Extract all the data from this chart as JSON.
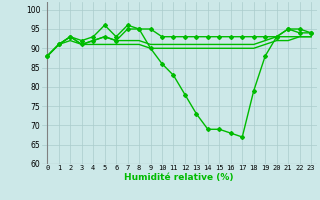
{
  "x": [
    0,
    1,
    2,
    3,
    4,
    5,
    6,
    7,
    8,
    9,
    10,
    11,
    12,
    13,
    14,
    15,
    16,
    17,
    18,
    19,
    20,
    21,
    22,
    23
  ],
  "line_main": [
    88,
    91,
    93,
    92,
    93,
    96,
    93,
    96,
    95,
    90,
    86,
    83,
    78,
    73,
    69,
    69,
    68,
    67,
    79,
    88,
    93,
    95,
    94,
    94
  ],
  "line_upper": [
    88,
    91,
    93,
    91,
    92,
    93,
    92,
    95,
    95,
    95,
    93,
    93,
    93,
    93,
    93,
    93,
    93,
    93,
    93,
    93,
    93,
    95,
    95,
    94
  ],
  "line_mid1": [
    88,
    91,
    93,
    91,
    92,
    93,
    92,
    92,
    92,
    91,
    91,
    91,
    91,
    91,
    91,
    91,
    91,
    91,
    91,
    92,
    93,
    93,
    93,
    93
  ],
  "line_mid2": [
    88,
    91,
    92,
    91,
    91,
    91,
    91,
    91,
    91,
    90,
    90,
    90,
    90,
    90,
    90,
    90,
    90,
    90,
    90,
    91,
    92,
    92,
    93,
    93
  ],
  "background_color": "#cce8e8",
  "grid_color": "#aacccc",
  "line_color": "#00bb00",
  "markersize": 2.0,
  "linewidth": 1.0,
  "xlabel": "Humidité relative (%)",
  "ylim": [
    60,
    102
  ],
  "xlim": [
    -0.5,
    23.5
  ],
  "yticks": [
    60,
    65,
    70,
    75,
    80,
    85,
    90,
    95,
    100
  ],
  "xticks": [
    0,
    1,
    2,
    3,
    4,
    5,
    6,
    7,
    8,
    9,
    10,
    11,
    12,
    13,
    14,
    15,
    16,
    17,
    18,
    19,
    20,
    21,
    22,
    23
  ],
  "xtick_labels": [
    "0",
    "1",
    "2",
    "3",
    "4",
    "5",
    "6",
    "7",
    "8",
    "9",
    "10",
    "11",
    "12",
    "13",
    "14",
    "15",
    "16",
    "17",
    "18",
    "19",
    "20",
    "21",
    "22",
    "23"
  ]
}
